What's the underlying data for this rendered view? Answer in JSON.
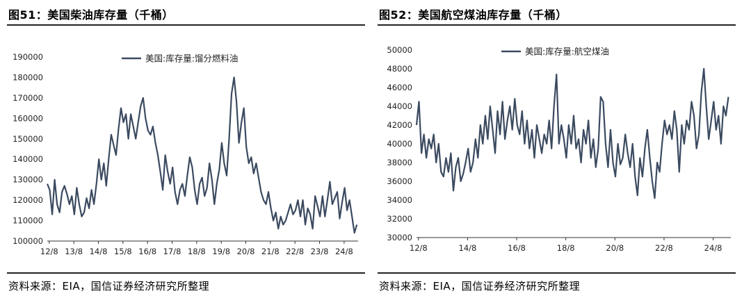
{
  "charts": [
    {
      "title": "图51：美国柴油库存量（千桶）",
      "source": "资料来源：EIA，国信证券经济研究所整理",
      "chart_data": {
        "type": "line",
        "title": "图51：美国柴油库存量（千桶）",
        "xlabel": "",
        "ylabel": "",
        "legend_position": "top-center",
        "grid": false,
        "ylim": [
          100000,
          190000
        ],
        "yticks": [
          100000,
          110000,
          120000,
          130000,
          140000,
          150000,
          160000,
          170000,
          180000,
          190000
        ],
        "xlim": [
          2012.5,
          2025.15
        ],
        "xticks": [
          {
            "label": "12/8",
            "value": 2012.58
          },
          {
            "label": "13/8",
            "value": 2013.58
          },
          {
            "label": "14/8",
            "value": 2014.58
          },
          {
            "label": "15/8",
            "value": 2015.58
          },
          {
            "label": "16/8",
            "value": 2016.58
          },
          {
            "label": "17/8",
            "value": 2017.58
          },
          {
            "label": "18/8",
            "value": 2018.58
          },
          {
            "label": "19/8",
            "value": 2019.58
          },
          {
            "label": "20/8",
            "value": 2020.58
          },
          {
            "label": "21/8",
            "value": 2021.58
          },
          {
            "label": "22/8",
            "value": 2022.58
          },
          {
            "label": "23/8",
            "value": 2023.58
          },
          {
            "label": "24/8",
            "value": 2024.58
          }
        ],
        "series": [
          {
            "name": "美国:库存量:馏分燃料油",
            "color": "#3b4a60",
            "x": [
              2012.5,
              2012.6,
              2012.7,
              2012.8,
              2012.9,
              2013.0,
              2013.1,
              2013.2,
              2013.3,
              2013.4,
              2013.5,
              2013.6,
              2013.7,
              2013.8,
              2013.9,
              2014.0,
              2014.1,
              2014.2,
              2014.3,
              2014.4,
              2014.5,
              2014.6,
              2014.7,
              2014.8,
              2014.9,
              2015.0,
              2015.1,
              2015.2,
              2015.3,
              2015.4,
              2015.5,
              2015.6,
              2015.7,
              2015.8,
              2015.9,
              2016.0,
              2016.1,
              2016.2,
              2016.3,
              2016.4,
              2016.5,
              2016.6,
              2016.7,
              2016.8,
              2016.9,
              2017.0,
              2017.1,
              2017.2,
              2017.3,
              2017.4,
              2017.5,
              2017.6,
              2017.7,
              2017.8,
              2017.9,
              2018.0,
              2018.1,
              2018.2,
              2018.3,
              2018.4,
              2018.5,
              2018.6,
              2018.7,
              2018.8,
              2018.9,
              2019.0,
              2019.1,
              2019.2,
              2019.3,
              2019.4,
              2019.5,
              2019.6,
              2019.7,
              2019.8,
              2019.9,
              2020.0,
              2020.1,
              2020.2,
              2020.3,
              2020.4,
              2020.5,
              2020.6,
              2020.7,
              2020.8,
              2020.9,
              2021.0,
              2021.1,
              2021.2,
              2021.3,
              2021.4,
              2021.5,
              2021.6,
              2021.7,
              2021.8,
              2021.9,
              2022.0,
              2022.1,
              2022.2,
              2022.3,
              2022.4,
              2022.5,
              2022.6,
              2022.7,
              2022.8,
              2022.9,
              2023.0,
              2023.1,
              2023.2,
              2023.3,
              2023.4,
              2023.5,
              2023.6,
              2023.7,
              2023.8,
              2023.9,
              2024.0,
              2024.1,
              2024.2,
              2024.3,
              2024.4,
              2024.5,
              2024.6,
              2024.7,
              2024.8,
              2024.9,
              2025.0,
              2025.1
            ],
            "values": [
              128000,
              125000,
              113000,
              130000,
              118000,
              114000,
              124000,
              127000,
              123000,
              118000,
              122000,
              113000,
              126000,
              118000,
              112000,
              114000,
              121000,
              116000,
              125000,
              118000,
              128000,
              140000,
              130000,
              138000,
              127000,
              140000,
              152000,
              147000,
              142000,
              155000,
              165000,
              158000,
              162000,
              150000,
              162000,
              156000,
              150000,
              158000,
              166000,
              170000,
              160000,
              154000,
              152000,
              156000,
              148000,
              142000,
              134000,
              125000,
              142000,
              134000,
              128000,
              136000,
              124000,
              118000,
              125000,
              128000,
              122000,
              132000,
              141000,
              136000,
              125000,
              118000,
              128000,
              131000,
              122000,
              126000,
              138000,
              130000,
              118000,
              128000,
              135000,
              148000,
              138000,
              132000,
              150000,
              172000,
              180000,
              168000,
              148000,
              158000,
              165000,
              146000,
              138000,
              141000,
              133000,
              138000,
              131000,
              124000,
              120000,
              118000,
              124000,
              116000,
              110000,
              114000,
              106000,
              112000,
              108000,
              110000,
              114000,
              118000,
              113000,
              115000,
              120000,
              112000,
              120000,
              108000,
              116000,
              113000,
              106000,
              122000,
              117000,
              112000,
              122000,
              112000,
              120000,
              129000,
              118000,
              121000,
              124000,
              111000,
              119000,
              126000,
              115000,
              120000,
              112000,
              104000,
              108000
            ]
          }
        ]
      }
    },
    {
      "title": "图52：美国航空煤油库存量（千桶）",
      "source": "资料来源：EIA，国信证券经济研究所整理",
      "chart_data": {
        "type": "line",
        "title": "图52：美国航空煤油库存量（千桶）",
        "xlabel": "",
        "ylabel": "",
        "legend_position": "top-center",
        "grid": false,
        "ylim": [
          30000,
          50000
        ],
        "yticks": [
          30000,
          32000,
          34000,
          36000,
          38000,
          40000,
          42000,
          44000,
          46000,
          48000,
          50000
        ],
        "xlim": [
          2012.5,
          2025.3
        ],
        "xticks": [
          {
            "label": "12/8",
            "value": 2012.58
          },
          {
            "label": "14/8",
            "value": 2014.58
          },
          {
            "label": "16/8",
            "value": 2016.58
          },
          {
            "label": "18/8",
            "value": 2018.58
          },
          {
            "label": "20/8",
            "value": 2020.58
          },
          {
            "label": "22/8",
            "value": 2022.58
          },
          {
            "label": "24/8",
            "value": 2024.58
          }
        ],
        "series": [
          {
            "name": "美国:库存量:航空煤油",
            "color": "#3b4a60",
            "x": [
              2012.5,
              2012.6,
              2012.7,
              2012.8,
              2012.9,
              2013.0,
              2013.1,
              2013.2,
              2013.3,
              2013.4,
              2013.5,
              2013.6,
              2013.7,
              2013.8,
              2013.9,
              2014.0,
              2014.1,
              2014.2,
              2014.3,
              2014.4,
              2014.5,
              2014.6,
              2014.7,
              2014.8,
              2014.9,
              2015.0,
              2015.1,
              2015.2,
              2015.3,
              2015.4,
              2015.5,
              2015.6,
              2015.7,
              2015.8,
              2015.9,
              2016.0,
              2016.1,
              2016.2,
              2016.3,
              2016.4,
              2016.5,
              2016.6,
              2016.7,
              2016.8,
              2016.9,
              2017.0,
              2017.1,
              2017.2,
              2017.3,
              2017.4,
              2017.5,
              2017.6,
              2017.7,
              2017.8,
              2017.9,
              2018.0,
              2018.1,
              2018.2,
              2018.3,
              2018.4,
              2018.5,
              2018.6,
              2018.7,
              2018.8,
              2018.9,
              2019.0,
              2019.1,
              2019.2,
              2019.3,
              2019.4,
              2019.5,
              2019.6,
              2019.7,
              2019.8,
              2019.9,
              2020.0,
              2020.1,
              2020.2,
              2020.3,
              2020.4,
              2020.5,
              2020.6,
              2020.7,
              2020.8,
              2020.9,
              2021.0,
              2021.1,
              2021.2,
              2021.3,
              2021.4,
              2021.5,
              2021.6,
              2021.7,
              2021.8,
              2021.9,
              2022.0,
              2022.1,
              2022.2,
              2022.3,
              2022.4,
              2022.5,
              2022.6,
              2022.7,
              2022.8,
              2022.9,
              2023.0,
              2023.1,
              2023.2,
              2023.3,
              2023.4,
              2023.5,
              2023.6,
              2023.7,
              2023.8,
              2023.9,
              2024.0,
              2024.1,
              2024.2,
              2024.3,
              2024.4,
              2024.5,
              2024.6,
              2024.7,
              2024.8,
              2024.9,
              2025.0,
              2025.1,
              2025.2
            ],
            "values": [
              42000,
              44500,
              39000,
              41000,
              38500,
              40500,
              39500,
              41000,
              38000,
              40000,
              37000,
              36500,
              38500,
              37000,
              39000,
              35000,
              37500,
              38500,
              36000,
              36800,
              38000,
              39500,
              37000,
              38000,
              40500,
              38500,
              42000,
              40000,
              43000,
              40500,
              44000,
              41500,
              39000,
              43500,
              41000,
              44500,
              40500,
              42500,
              44000,
              41500,
              44800,
              42000,
              41000,
              43500,
              40000,
              42500,
              39500,
              41500,
              38500,
              42000,
              40500,
              39000,
              41000,
              40000,
              42500,
              39500,
              44000,
              47400,
              40000,
              42000,
              40500,
              38500,
              42000,
              40000,
              43000,
              39500,
              40500,
              38000,
              41500,
              40000,
              42500,
              38500,
              40500,
              37500,
              39500,
              45000,
              44500,
              40000,
              37500,
              41500,
              38000,
              36500,
              40000,
              37800,
              38500,
              41000,
              39000,
              37500,
              40000,
              36500,
              34500,
              38500,
              36500,
              39500,
              41500,
              38500,
              36000,
              34200,
              38000,
              37000,
              40000,
              42500,
              41000,
              42000,
              40500,
              43500,
              41500,
              37000,
              42000,
              40000,
              42500,
              41500,
              44500,
              43000,
              39500,
              41000,
              45500,
              48000,
              44000,
              40500,
              42500,
              44500,
              41500,
              43000,
              40000,
              44000,
              43000,
              45000
            ]
          }
        ]
      }
    }
  ]
}
